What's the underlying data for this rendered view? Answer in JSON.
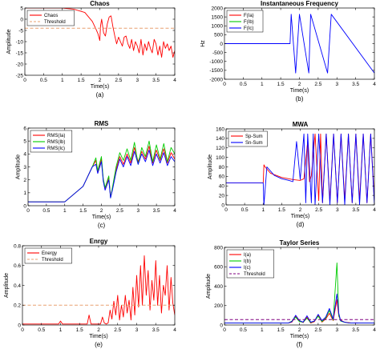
{
  "figure": {
    "panels": [
      {
        "title": "Chaos",
        "caption": "(a)"
      },
      {
        "title": "Instantaneous Frequency",
        "caption": "(b)"
      },
      {
        "title": "RMS",
        "caption": "(c)"
      },
      {
        "title": "MWA",
        "caption": "(d)"
      },
      {
        "title": "Enrgy",
        "caption": "(e)"
      },
      {
        "title": "Taylor Series",
        "caption": "(f)"
      }
    ]
  },
  "chart_data": [
    {
      "type": "line",
      "title": "Chaos",
      "caption": "(a)",
      "xlabel": "Time(s)",
      "ylabel": "Amplitude",
      "xlim": [
        0,
        4
      ],
      "ylim": [
        -25,
        5
      ],
      "xticks": [
        "0",
        "0.5",
        "1",
        "1.5",
        "2",
        "2.5",
        "3",
        "3.5",
        "4"
      ],
      "yticks": [
        "5",
        "0",
        "-5",
        "-10",
        "-15",
        "-20",
        "-25"
      ],
      "legend": "top-left",
      "series": [
        {
          "name": "Chaos",
          "color": "#ff0000",
          "style": "solid",
          "x": [
            0,
            0.5,
            1,
            1.3,
            1.6,
            1.8,
            1.9,
            1.95,
            2.0,
            2.02,
            2.05,
            2.08,
            2.1,
            2.13,
            2.15,
            2.2,
            2.25,
            2.3,
            2.35,
            2.4,
            2.45,
            2.5,
            2.55,
            2.6,
            2.65,
            2.7,
            2.75,
            2.8,
            2.85,
            2.9,
            2.95,
            3.0,
            3.05,
            3.1,
            3.15,
            3.2,
            3.25,
            3.3,
            3.35,
            3.4,
            3.45,
            3.5,
            3.55,
            3.6,
            3.65,
            3.7,
            3.75,
            3.8,
            3.85,
            3.9,
            3.95,
            4.0
          ],
          "y": [
            5,
            5,
            5,
            4.5,
            3,
            -1,
            -4.5,
            -6.5,
            -9.5,
            -3,
            0,
            -3.5,
            -6,
            -7,
            -7.5,
            -2,
            1,
            1.5,
            -3.5,
            -7.5,
            -11,
            -8,
            -10,
            -12,
            -8,
            -7.5,
            -11,
            -13,
            -9,
            -14,
            -10,
            -12,
            -15,
            -9,
            -16,
            -11,
            -14,
            -10,
            -13,
            -15,
            -9,
            -11,
            -16,
            -12,
            -17,
            -10,
            -13,
            -11,
            -14,
            -12,
            -17,
            -14
          ]
        },
        {
          "name": "Threshold",
          "color": "#e8a070",
          "style": "dashed",
          "x": [
            0,
            4
          ],
          "y": [
            -4,
            -4
          ]
        }
      ]
    },
    {
      "type": "line",
      "title": "Instantaneous Frequency",
      "caption": "(b)",
      "xlabel": "Time(s)",
      "ylabel": "Hz",
      "xlim": [
        0,
        4
      ],
      "ylim": [
        -2000,
        2000
      ],
      "xticks": [
        "0",
        "0.5",
        "1",
        "1.5",
        "2",
        "2.5",
        "3",
        "3.5",
        "4"
      ],
      "yticks": [
        "2000",
        "1500",
        "1000",
        "500",
        "0",
        "-500",
        "-1000",
        "-1500",
        "-2000"
      ],
      "legend": "top-left",
      "series": [
        {
          "name": "F(Ia)",
          "color": "#ff0000"
        },
        {
          "name": "F(Ib)",
          "color": "#00cc00"
        },
        {
          "name": "F(Ic)",
          "color": "#0000ff",
          "x": [
            0,
            1.75,
            1.78,
            1.9,
            2.0,
            2.25,
            2.3,
            2.75,
            2.85,
            4.0
          ],
          "y": [
            0,
            0,
            1650,
            -1650,
            1650,
            -1650,
            1650,
            -1650,
            1650,
            -1650
          ]
        }
      ]
    },
    {
      "type": "line",
      "title": "RMS",
      "caption": "(c)",
      "xlabel": "Time(s)",
      "ylabel": "Amplitude",
      "xlim": [
        0,
        4
      ],
      "ylim": [
        0,
        6
      ],
      "xticks": [
        "0",
        "0.5",
        "1",
        "1.5",
        "2",
        "2.5",
        "3",
        "3.5",
        "4"
      ],
      "yticks": [
        "6",
        "5",
        "4",
        "3",
        "2",
        "1",
        "0"
      ],
      "legend": "top-left",
      "series": [
        {
          "name": "RMS(Ia)",
          "color": "#ff0000",
          "x": [
            0,
            1,
            1.5,
            1.75,
            1.85,
            1.9,
            2.0,
            2.05,
            2.1,
            2.2,
            2.25,
            2.3,
            2.4,
            2.5,
            2.6,
            2.7,
            2.8,
            2.9,
            3.0,
            3.1,
            3.2,
            3.3,
            3.4,
            3.5,
            3.6,
            3.7,
            3.8,
            3.9,
            4.0
          ],
          "y": [
            0.3,
            0.3,
            1.5,
            3.0,
            3.5,
            2.6,
            3.6,
            2.0,
            1.3,
            2.2,
            0.7,
            1.3,
            2.8,
            3.8,
            3.2,
            4.0,
            3.3,
            4.5,
            3.4,
            4.2,
            3.6,
            4.6,
            3.3,
            4.3,
            3.5,
            4.4,
            3.3,
            4.1,
            3.6
          ]
        },
        {
          "name": "RMS(Ib)",
          "color": "#00cc00",
          "x": [
            0,
            1,
            1.5,
            1.75,
            1.85,
            1.9,
            2.0,
            2.05,
            2.1,
            2.2,
            2.25,
            2.3,
            2.4,
            2.5,
            2.6,
            2.7,
            2.8,
            2.9,
            3.0,
            3.1,
            3.2,
            3.3,
            3.4,
            3.5,
            3.6,
            3.7,
            3.8,
            3.9,
            4.0
          ],
          "y": [
            0.3,
            0.3,
            1.5,
            3.0,
            3.7,
            2.7,
            3.8,
            2.1,
            1.4,
            2.3,
            0.6,
            1.4,
            3.0,
            4.1,
            3.5,
            4.4,
            3.5,
            4.9,
            3.2,
            4.5,
            3.8,
            5.0,
            3.4,
            4.7,
            3.6,
            4.8,
            3.4,
            4.5,
            4.0
          ]
        },
        {
          "name": "RMS(Ic)",
          "color": "#0000ff",
          "x": [
            0,
            1,
            1.5,
            1.75,
            1.85,
            1.9,
            2.0,
            2.05,
            2.1,
            2.2,
            2.25,
            2.3,
            2.4,
            2.5,
            2.6,
            2.7,
            2.8,
            2.9,
            3.0,
            3.1,
            3.2,
            3.3,
            3.4,
            3.5,
            3.6,
            3.7,
            3.8,
            3.9,
            4.0
          ],
          "y": [
            0.3,
            0.3,
            1.5,
            3.0,
            3.2,
            2.5,
            3.4,
            1.9,
            1.2,
            2.0,
            0.6,
            1.2,
            2.6,
            3.6,
            3.0,
            3.8,
            3.1,
            4.2,
            3.2,
            4.0,
            3.4,
            4.3,
            3.1,
            4.0,
            3.3,
            4.1,
            3.1,
            3.8,
            3.4
          ]
        }
      ]
    },
    {
      "type": "line",
      "title": "MWA",
      "caption": "(d)",
      "xlabel": "Time(s)",
      "ylabel": "Amplitude",
      "xlim": [
        0,
        4
      ],
      "ylim": [
        0,
        180
      ],
      "xticks": [
        "0",
        "0.5",
        "1",
        "1.5",
        "2",
        "2.5",
        "3",
        "3.5",
        "4"
      ],
      "yticks": [
        "160",
        "140",
        "120",
        "100",
        "80",
        "60",
        "40",
        "20",
        "0"
      ],
      "legend": "top-left",
      "series": [
        {
          "name": "Sp-Sum",
          "color": "#ff0000",
          "x": [
            0,
            1.0,
            1.02,
            1.05,
            1.2,
            1.5,
            1.8,
            2.0,
            2.1,
            2.2,
            2.25,
            2.3,
            2.4,
            2.5,
            2.55,
            2.6,
            2.7,
            2.8,
            2.9,
            3.0,
            3.1,
            3.2,
            3.3,
            3.4,
            3.5,
            3.6,
            3.7,
            3.8,
            3.9,
            4.0
          ],
          "y": [
            52,
            52,
            95,
            90,
            75,
            65,
            60,
            58,
            62,
            150,
            55,
            70,
            168,
            10,
            168,
            5,
            168,
            8,
            168,
            5,
            168,
            10,
            168,
            5,
            168,
            10,
            168,
            5,
            168,
            10
          ]
        },
        {
          "name": "Sn-Sum",
          "color": "#0000ff",
          "x": [
            0,
            1.0,
            1.02,
            1.1,
            1.3,
            1.5,
            1.7,
            1.8,
            1.9,
            2.0,
            2.1,
            2.15,
            2.2,
            2.3,
            2.35,
            2.4,
            2.5,
            2.6,
            2.7,
            2.8,
            2.9,
            3.0,
            3.1,
            3.2,
            3.3,
            3.4,
            3.5,
            3.6,
            3.7,
            3.8,
            3.9,
            4.0
          ],
          "y": [
            52,
            52,
            0,
            90,
            70,
            62,
            58,
            55,
            150,
            60,
            168,
            5,
            168,
            5,
            168,
            0,
            168,
            5,
            168,
            0,
            168,
            5,
            168,
            0,
            168,
            5,
            168,
            0,
            168,
            5,
            168,
            0
          ]
        }
      ]
    },
    {
      "type": "line",
      "title": "Enrgy",
      "caption": "(e)",
      "xlabel": "Time(s)",
      "ylabel": "Amplitude",
      "xlim": [
        0,
        4
      ],
      "ylim": [
        0,
        0.8
      ],
      "xticks": [
        "0",
        "0.5",
        "1",
        "1.5",
        "2",
        "2.5",
        "3",
        "3.5",
        "4"
      ],
      "yticks": [
        "0.8",
        "0.6",
        "0.4",
        "0.2",
        "0"
      ],
      "legend": "top-left",
      "series": [
        {
          "name": "Energy",
          "color": "#ff0000",
          "style": "solid",
          "x": [
            0,
            0.95,
            1.0,
            1.05,
            1.7,
            1.75,
            1.8,
            2.05,
            2.1,
            2.15,
            2.2,
            2.25,
            2.3,
            2.35,
            2.4,
            2.45,
            2.5,
            2.55,
            2.6,
            2.65,
            2.7,
            2.75,
            2.8,
            2.85,
            2.9,
            2.95,
            3.0,
            3.05,
            3.1,
            3.15,
            3.2,
            3.25,
            3.3,
            3.35,
            3.4,
            3.45,
            3.5,
            3.55,
            3.6,
            3.65,
            3.7,
            3.75,
            3.8,
            3.85,
            3.9,
            3.95,
            4.0
          ],
          "y": [
            0.01,
            0.01,
            0.04,
            0.01,
            0.01,
            0.1,
            0.01,
            0.01,
            0.08,
            0.02,
            0.01,
            0.02,
            0.15,
            0.06,
            0.24,
            0.1,
            0.3,
            0.05,
            0.2,
            0.08,
            0.3,
            0.12,
            0.25,
            0.05,
            0.38,
            0.1,
            0.5,
            0.18,
            0.6,
            0.2,
            0.7,
            0.3,
            0.55,
            0.15,
            0.45,
            0.25,
            0.65,
            0.2,
            0.5,
            0.12,
            0.4,
            0.3,
            0.6,
            0.15,
            0.48,
            0.22,
            0.1
          ]
        },
        {
          "name": "Threshold",
          "color": "#e8a070",
          "style": "dashed",
          "x": [
            0,
            4
          ],
          "y": [
            0.2,
            0.2
          ]
        }
      ]
    },
    {
      "type": "line",
      "title": "Taylor Series",
      "caption": "(f)",
      "xlabel": "Time(s)",
      "ylabel": "Amplitude",
      "xlim": [
        0,
        4
      ],
      "ylim": [
        0,
        800
      ],
      "xticks": [
        "0",
        "0.5",
        "1",
        "1.5",
        "2",
        "2.5",
        "3",
        "3.5",
        "4"
      ],
      "yticks": [
        "800",
        "600",
        "400",
        "200",
        "0"
      ],
      "legend": "top-left",
      "series": [
        {
          "name": "I(a)",
          "color": "#ff0000",
          "style": "solid",
          "x": [
            0,
            1.7,
            1.8,
            1.9,
            2.0,
            2.1,
            2.2,
            2.3,
            2.4,
            2.5,
            2.6,
            2.7,
            2.8,
            2.9,
            3.0,
            3.05,
            3.1,
            3.2,
            3.3,
            3.4,
            3.5,
            3.6,
            3.7,
            3.8,
            3.9,
            4.0
          ],
          "y": [
            20,
            20,
            30,
            90,
            40,
            25,
            80,
            20,
            35,
            100,
            30,
            60,
            120,
            45,
            260,
            90,
            50,
            30,
            25,
            20,
            22,
            20,
            21,
            20,
            20,
            20
          ]
        },
        {
          "name": "I(b)",
          "color": "#00cc00",
          "style": "solid",
          "x": [
            0,
            1.7,
            1.8,
            1.9,
            2.0,
            2.1,
            2.2,
            2.3,
            2.4,
            2.5,
            2.6,
            2.7,
            2.8,
            2.9,
            3.0,
            3.05,
            3.1,
            3.2,
            3.3,
            3.4,
            3.5,
            3.6,
            3.7,
            3.8,
            3.9,
            4.0
          ],
          "y": [
            20,
            20,
            40,
            80,
            35,
            30,
            70,
            25,
            40,
            90,
            35,
            70,
            150,
            50,
            640,
            100,
            40,
            28,
            22,
            21,
            20,
            20,
            20,
            20,
            20,
            20
          ]
        },
        {
          "name": "I(c)",
          "color": "#0000ff",
          "style": "solid",
          "x": [
            0,
            1.7,
            1.8,
            1.9,
            2.0,
            2.1,
            2.2,
            2.3,
            2.4,
            2.5,
            2.6,
            2.7,
            2.8,
            2.9,
            3.0,
            3.05,
            3.1,
            3.2,
            3.3,
            3.4,
            3.5,
            3.6,
            3.7,
            3.8,
            3.9,
            4.0
          ],
          "y": [
            20,
            20,
            35,
            100,
            45,
            30,
            95,
            30,
            40,
            110,
            45,
            80,
            170,
            60,
            320,
            120,
            45,
            30,
            22,
            20,
            21,
            20,
            20,
            20,
            20,
            20
          ]
        },
        {
          "name": "Threshold",
          "color": "#800080",
          "style": "dashed",
          "x": [
            0,
            4
          ],
          "y": [
            55,
            55
          ]
        }
      ]
    }
  ]
}
